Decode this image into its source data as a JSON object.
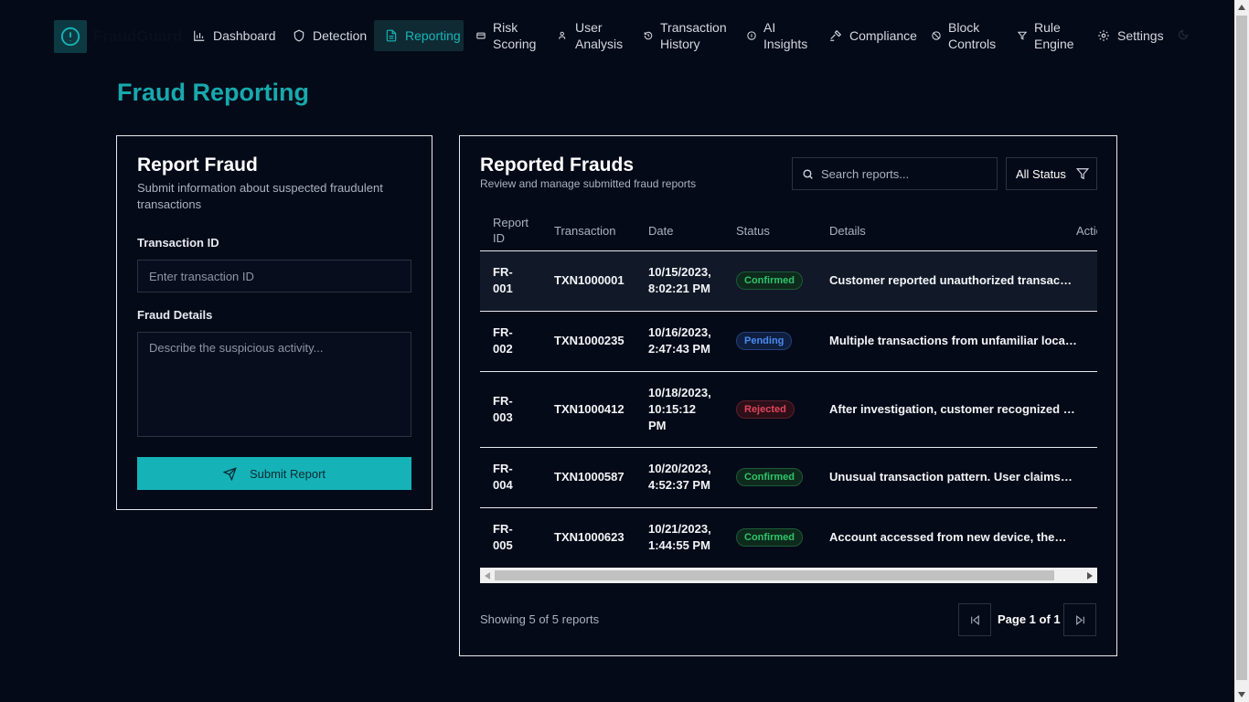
{
  "app": {
    "name": "FraudGuard"
  },
  "nav": {
    "items": [
      {
        "label": "Dashboard",
        "icon": "bar-chart-icon"
      },
      {
        "label": "Detection",
        "icon": "shield-icon"
      },
      {
        "label": "Reporting",
        "icon": "file-text-icon",
        "active": true
      },
      {
        "label": "Risk Scoring",
        "line1": "Risk",
        "line2": "Scoring",
        "icon": "credit-card-icon"
      },
      {
        "label": "User Analysis",
        "line1": "User",
        "line2": "Analysis",
        "icon": "users-icon"
      },
      {
        "label": "Transaction History",
        "line1": "Transaction",
        "line2": "History",
        "icon": "history-icon"
      },
      {
        "label": "AI Insights",
        "line1": "AI",
        "line2": "Insights",
        "icon": "info-icon"
      },
      {
        "label": "Compliance",
        "icon": "gavel-icon"
      },
      {
        "label": "Block Controls",
        "line1": "Block",
        "line2": "Controls",
        "icon": "ban-icon"
      },
      {
        "label": "Rule Engine",
        "line1": "Rule",
        "line2": "Engine",
        "icon": "filter-icon"
      },
      {
        "label": "Settings",
        "icon": "gear-icon"
      }
    ]
  },
  "page": {
    "title": "Fraud Reporting"
  },
  "report_form": {
    "title": "Report Fraud",
    "subtitle": "Submit information about suspected fraudulent transactions",
    "transaction_label": "Transaction ID",
    "transaction_placeholder": "Enter transaction ID",
    "details_label": "Fraud Details",
    "details_placeholder": "Describe the suspicious activity...",
    "submit_label": "Submit Report"
  },
  "reports": {
    "title": "Reported Frauds",
    "subtitle": "Review and manage submitted fraud reports",
    "search_placeholder": "Search reports...",
    "status_filter": "All Status",
    "columns": {
      "id_line1": "Report",
      "id_line2": "ID",
      "transaction": "Transaction",
      "date": "Date",
      "status": "Status",
      "details": "Details",
      "actions": "Actions"
    },
    "rows": [
      {
        "id1": "FR-",
        "id2": "001",
        "transaction": "TXN1000001",
        "date1": "10/15/2023,",
        "date2": "8:02:21 PM",
        "date3": "",
        "status": "Confirmed",
        "details": "Customer reported unauthorized transac…"
      },
      {
        "id1": "FR-",
        "id2": "002",
        "transaction": "TXN1000235",
        "date1": "10/16/2023,",
        "date2": "2:47:43 PM",
        "date3": "",
        "status": "Pending",
        "details": "Multiple transactions from unfamiliar loca…"
      },
      {
        "id1": "FR-",
        "id2": "003",
        "transaction": "TXN1000412",
        "date1": "10/18/2023,",
        "date2": "10:15:12",
        "date3": "PM",
        "status": "Rejected",
        "details": "After investigation, customer recognized …"
      },
      {
        "id1": "FR-",
        "id2": "004",
        "transaction": "TXN1000587",
        "date1": "10/20/2023,",
        "date2": "4:52:37 PM",
        "date3": "",
        "status": "Confirmed",
        "details": "Unusual transaction pattern. User claims…"
      },
      {
        "id1": "FR-",
        "id2": "005",
        "transaction": "TXN1000623",
        "date1": "10/21/2023,",
        "date2": "1:44:55 PM",
        "date3": "",
        "status": "Confirmed",
        "details": "Account accessed from new device, the…"
      }
    ],
    "showing_text": "Showing 5 of 5 reports",
    "page_label": "Page 1 of 1"
  },
  "colors": {
    "background": "#050a18",
    "accent": "#17b5b9",
    "confirmed": "#2fc46a",
    "pending": "#4a8bf0",
    "rejected": "#e0455c"
  }
}
